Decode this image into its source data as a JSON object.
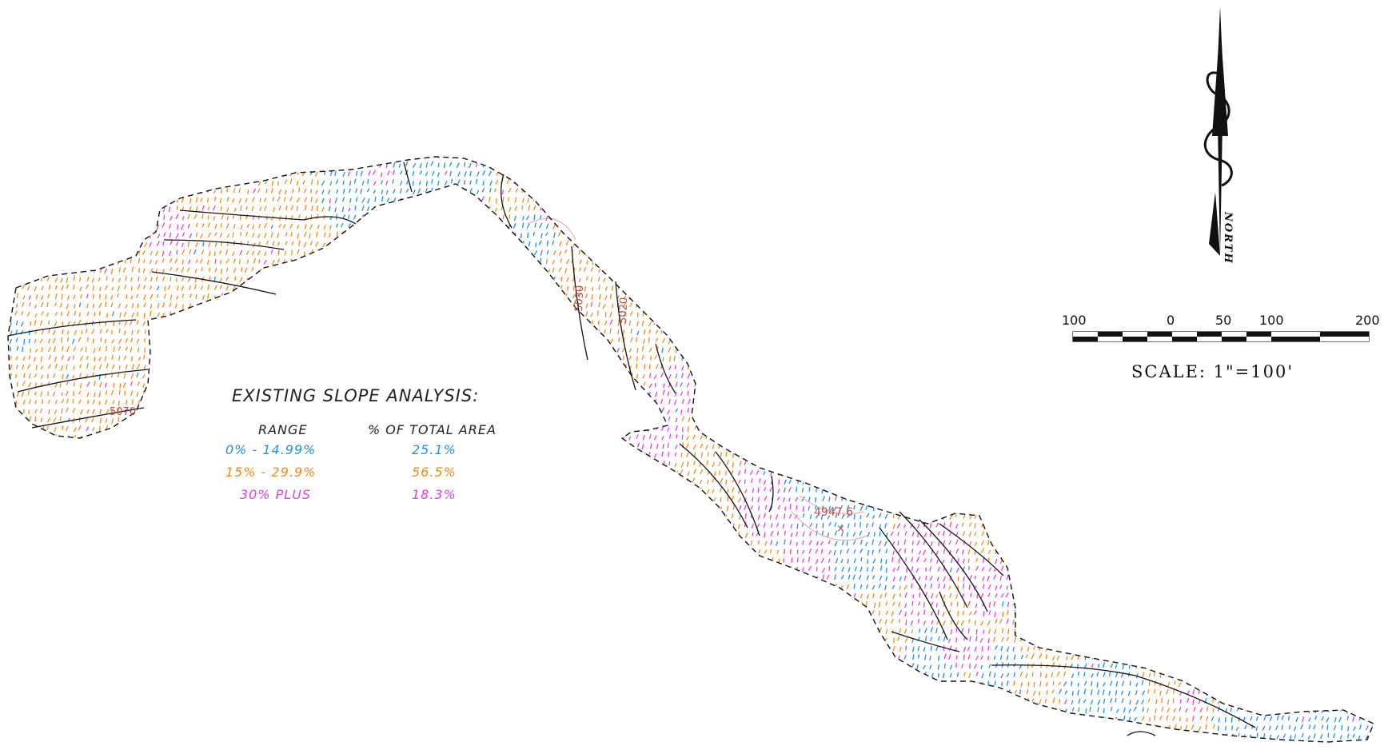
{
  "legend": {
    "title": "EXISTING SLOPE ANALYSIS:",
    "col_range": "RANGE",
    "col_pct": "% OF TOTAL AREA",
    "rows": [
      {
        "range": "0% - 14.99%",
        "pct": "25.1%",
        "color": "#1f8fe5"
      },
      {
        "range": "15% - 29.9%",
        "pct": "56.5%",
        "color": "#f08a1c"
      },
      {
        "range": "30% PLUS",
        "pct": "18.3%",
        "color": "#e23fe0"
      }
    ]
  },
  "north_arrow": {
    "label": "NORTH"
  },
  "scale_bar": {
    "ticks": [
      "100",
      "0",
      "50",
      "100",
      "200"
    ],
    "label": "SCALE:  1\"=100'"
  },
  "annotations": {
    "spot_elevation": "4947.6",
    "contour_labels": [
      "5070",
      "5030",
      "5020"
    ]
  },
  "colors": {
    "outline": "#111111",
    "contour": "#111111",
    "label": "#b05050"
  }
}
